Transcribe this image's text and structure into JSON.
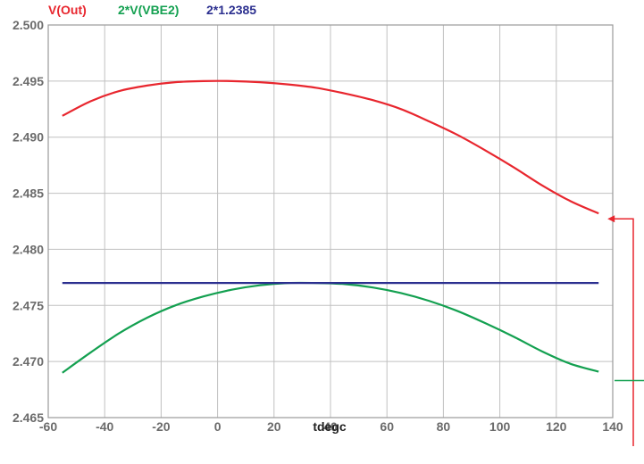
{
  "chart_data": {
    "type": "line",
    "title": "",
    "xlabel": "tdegc",
    "ylabel": "",
    "xlim": [
      -60,
      140
    ],
    "ylim": [
      2.465,
      2.5
    ],
    "grid": true,
    "legend": "top-left",
    "x_ticks": [
      "-60",
      "-40",
      "-20",
      "0",
      "20",
      "40",
      "60",
      "80",
      "100",
      "120",
      "140"
    ],
    "y_ticks": [
      "2.465",
      "2.470",
      "2.475",
      "2.480",
      "2.485",
      "2.490",
      "2.495",
      "2.500"
    ],
    "series": [
      {
        "name": "V(Out)",
        "color": "#e8262e",
        "x": [
          -55,
          -45,
          -35,
          -25,
          -15,
          -5,
          5,
          15,
          25,
          35,
          45,
          55,
          65,
          75,
          85,
          95,
          105,
          115,
          125,
          135
        ],
        "y": [
          2.4919,
          2.4932,
          2.4941,
          2.4946,
          2.4949,
          2.495,
          2.495,
          2.4949,
          2.4947,
          2.4944,
          2.4939,
          2.4933,
          2.4925,
          2.4914,
          2.4902,
          2.4888,
          2.4873,
          2.4857,
          2.4843,
          2.4832
        ]
      },
      {
        "name": "2*V(VBE2)",
        "color": "#13a050",
        "x": [
          -55,
          -45,
          -35,
          -25,
          -15,
          -5,
          5,
          15,
          25,
          35,
          45,
          55,
          65,
          75,
          85,
          95,
          105,
          115,
          125,
          135
        ],
        "y": [
          2.469,
          2.4708,
          2.4725,
          2.4739,
          2.475,
          2.4758,
          2.4764,
          2.4768,
          2.477,
          2.477,
          2.4769,
          2.4766,
          2.4761,
          2.4754,
          2.4745,
          2.4734,
          2.4722,
          2.4709,
          2.4698,
          2.4691
        ]
      },
      {
        "name": "2*1.2385",
        "color": "#2b2f8f",
        "x": [
          -55,
          135
        ],
        "y": [
          2.477,
          2.477
        ]
      }
    ]
  }
}
